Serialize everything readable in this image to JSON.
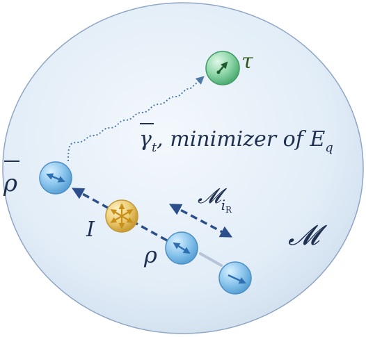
{
  "labels": {
    "manifold": "𝓜",
    "target": "τ",
    "rho_bar": "ρ",
    "rho": "ρ",
    "operator": "I",
    "path_gamma": "γ",
    "path_sub_t": "t",
    "path_text": ", minimizer of E",
    "path_sub_q": "q",
    "submanifold": "𝓜",
    "sub_i": "i",
    "sub_R": "R"
  },
  "colors": {
    "blob_fill": "#e6eff8",
    "blob_edge": "#8fa6c4",
    "state_fill": "#8ec7ec",
    "state_edge": "#4e8fc4",
    "arrow_blue": "#2c4f8c",
    "target_fill": "#8fd3a6",
    "target_edge": "#3f9a63",
    "target_text": "#2e5a20",
    "operator_fill": "#f1d27f",
    "operator_edge": "#c09a3a",
    "operator_arrows": "#c8901b",
    "faded_line": "#b6c4d8",
    "text_dark": "#1f2f4f",
    "dotted_path": "#4f79a8"
  },
  "icons": {
    "rho_bar_state": "bidirectional-arrow-icon",
    "rho_state": "bidirectional-arrow-icon",
    "final_state": "arrow-icon",
    "target_state": "arrow-icon",
    "operator_state": "starburst-arrows-icon"
  }
}
